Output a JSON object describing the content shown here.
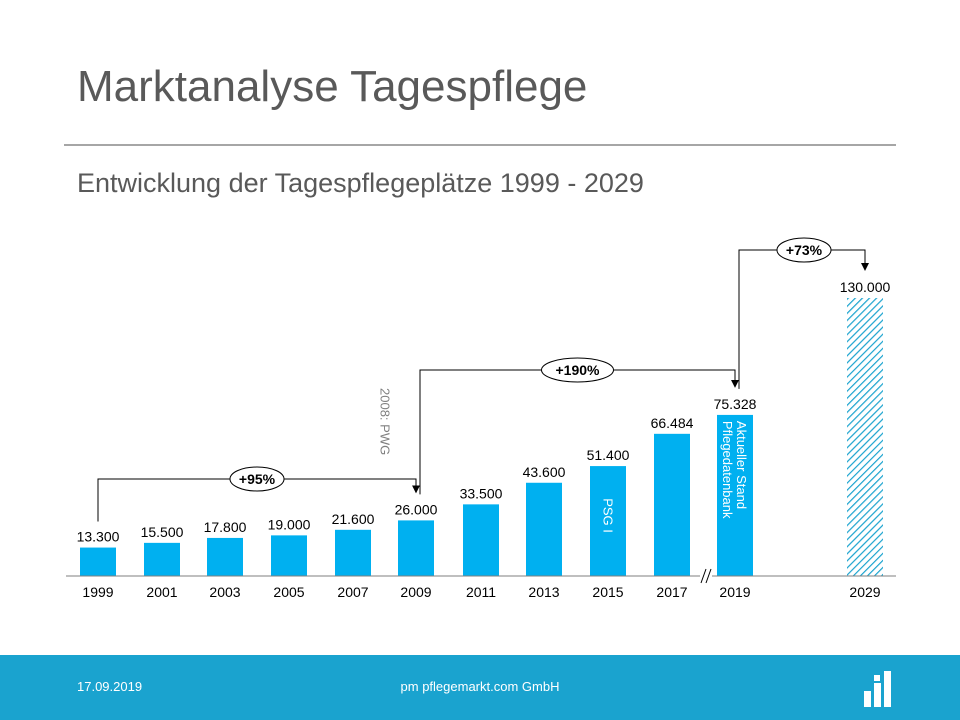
{
  "header": {
    "title": "Marktanalyse Tagespflege",
    "subtitle": "Entwicklung der Tagespflegeplätze 1999 - 2029"
  },
  "chart_data": {
    "type": "bar",
    "categories": [
      "1999",
      "2001",
      "2003",
      "2005",
      "2007",
      "2009",
      "2011",
      "2013",
      "2015",
      "2017",
      "2019",
      "2029"
    ],
    "values": [
      13300,
      15500,
      17800,
      19000,
      21600,
      26000,
      33500,
      43600,
      51400,
      66484,
      75328,
      130000
    ],
    "value_labels": [
      "13.300",
      "15.500",
      "17.800",
      "19.000",
      "21.600",
      "26.000",
      "33.500",
      "43.600",
      "51.400",
      "66.484",
      "75.328",
      "130.000"
    ],
    "ylim": [
      0,
      130000
    ],
    "grid": false,
    "axis_break_between": [
      "2017",
      "2019"
    ],
    "bar_color": "#00b0f0",
    "forecast_pattern": "hatched",
    "bar_annotations": [
      {
        "category": "2015",
        "text": "PSG I"
      },
      {
        "category": "2019",
        "lines": [
          "Aktueller Stand",
          "Pflegedatenbank"
        ]
      }
    ],
    "side_annotation": {
      "after_category": "2007",
      "text": "2008: PWG"
    },
    "growth_annotations": [
      {
        "from": "1999",
        "to": "2009",
        "label": "+95%"
      },
      {
        "from": "2009",
        "to": "2019",
        "label": "+190%"
      },
      {
        "from": "2019",
        "to": "2029",
        "label": "+73%"
      }
    ]
  },
  "footer": {
    "date": "17.09.2019",
    "company": "pm pflegemarkt.com GmbH",
    "logo_icon": "bar-chart-logo-icon",
    "color": "#1aa3cf"
  }
}
